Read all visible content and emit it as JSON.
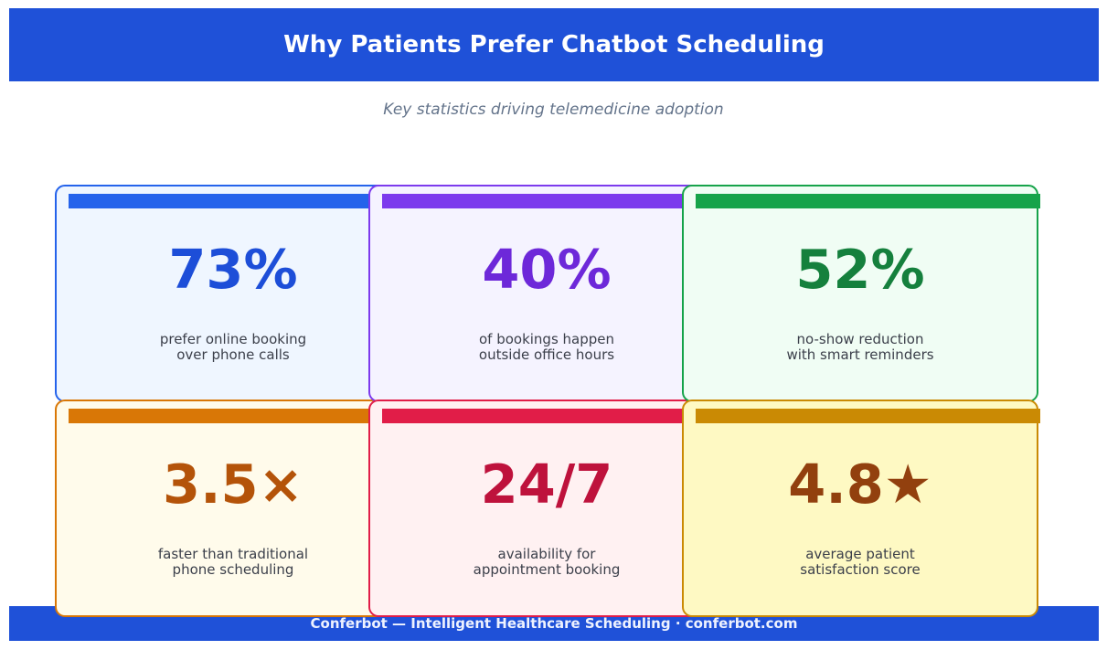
{
  "header": {
    "title": "Why Patients Prefer Chatbot Scheduling"
  },
  "subtitle": "Key statistics driving telemedicine adoption",
  "footer": {
    "text": "Conferbot — Intelligent Healthcare Scheduling · conferbot.com"
  },
  "chart_data": {
    "type": "table",
    "title": "Why Patients Prefer Chatbot Scheduling",
    "subtitle": "Key statistics driving telemedicine adoption",
    "stats": [
      {
        "value": "73%",
        "label": "prefer online booking\nover phone calls",
        "accent": "#2563eb",
        "text_color": "#1d4ed8",
        "bg": "#eff6ff"
      },
      {
        "value": "40%",
        "label": "of bookings happen\noutside office hours",
        "accent": "#7c3aed",
        "text_color": "#6d28d9",
        "bg": "#f5f3ff"
      },
      {
        "value": "52%",
        "label": "no-show reduction\nwith smart reminders",
        "accent": "#16a34a",
        "text_color": "#15803d",
        "bg": "#f0fdf4"
      },
      {
        "value": "3.5×",
        "label": "faster than traditional\nphone scheduling",
        "accent": "#d97706",
        "text_color": "#b45309",
        "bg": "#fffbeb"
      },
      {
        "value": "24/7",
        "label": "availability for\nappointment booking",
        "accent": "#e11d48",
        "text_color": "#be123c",
        "bg": "#fff1f2"
      },
      {
        "value": "4.8★",
        "label": "average patient\nsatisfaction score",
        "accent": "#ca8a04",
        "text_color": "#92400e",
        "bg": "#fef9c3"
      }
    ]
  }
}
